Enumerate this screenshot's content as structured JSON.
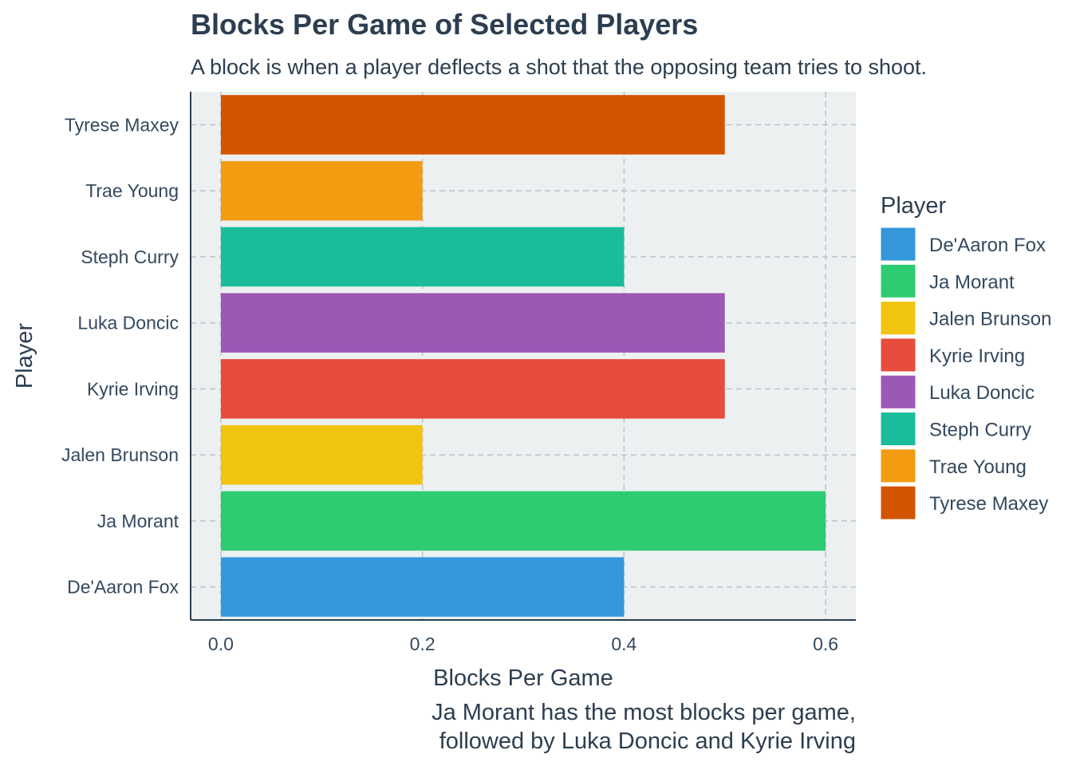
{
  "chart_data": {
    "type": "bar",
    "orientation": "horizontal",
    "title": "Blocks Per Game of Selected Players",
    "subtitle": "A block is when a player deflects a shot that the opposing team tries to shoot.",
    "xlabel": "Blocks Per Game",
    "ylabel": "Player",
    "caption": [
      "Ja Morant has the most blocks per game,",
      "followed by Luka Doncic and Kyrie Irving"
    ],
    "xlim": [
      -0.03,
      0.63
    ],
    "xticks": [
      0.0,
      0.2,
      0.4,
      0.6
    ],
    "xtick_labels": [
      "0.0",
      "0.2",
      "0.4",
      "0.6"
    ],
    "grid": true,
    "legend": {
      "title": "Player",
      "position": "right"
    },
    "categories": [
      "De'Aaron Fox",
      "Ja Morant",
      "Jalen Brunson",
      "Kyrie Irving",
      "Luka Doncic",
      "Steph Curry",
      "Trae Young",
      "Tyrese Maxey"
    ],
    "values": [
      0.4,
      0.6,
      0.2,
      0.5,
      0.5,
      0.4,
      0.2,
      0.5
    ],
    "colors": [
      "#3498db",
      "#2ecc71",
      "#f1c40f",
      "#e74c3c",
      "#9b59b6",
      "#1abc9c",
      "#f39c12",
      "#d35400"
    ],
    "panel_background": "#ecf0f1",
    "text_color": "#2c3e50"
  }
}
